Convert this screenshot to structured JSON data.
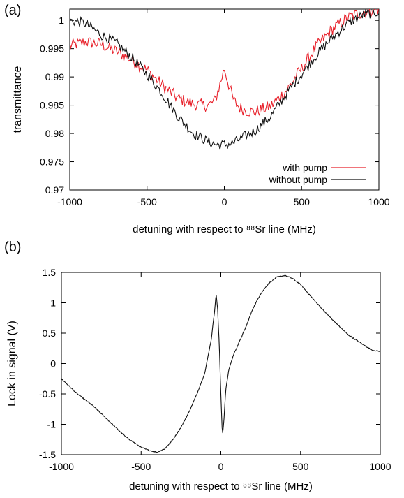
{
  "chart_data": [
    {
      "panel_label": "(a)",
      "type": "line",
      "xlabel": "detuning  with respect to ⁸⁸Sr line (MHz)",
      "ylabel": "transmittance",
      "xlim": [
        -1000,
        1000
      ],
      "ylim": [
        0.97,
        1.002
      ],
      "xticks": [
        -1000,
        -500,
        0,
        500,
        1000
      ],
      "yticks": [
        0.97,
        0.975,
        0.98,
        0.985,
        0.99,
        0.995,
        1
      ],
      "ytick_labels": [
        "0.97",
        "0.975",
        "0.98",
        "0.985",
        "0.99",
        "0.995",
        "1"
      ],
      "grid": false,
      "legend_position": "bottom-right",
      "series": [
        {
          "name": "with pump",
          "color": "#e8202a",
          "x": [
            -1000,
            -900,
            -800,
            -700,
            -600,
            -500,
            -400,
            -300,
            -200,
            -150,
            -100,
            -60,
            -30,
            0,
            30,
            60,
            100,
            150,
            200,
            300,
            400,
            500,
            600,
            700,
            800,
            900,
            1000
          ],
          "y": [
            0.9955,
            0.9962,
            0.9958,
            0.9945,
            0.993,
            0.9912,
            0.9885,
            0.9862,
            0.9852,
            0.985,
            0.985,
            0.9858,
            0.9885,
            0.9915,
            0.9885,
            0.9858,
            0.9845,
            0.984,
            0.9838,
            0.9848,
            0.9875,
            0.9915,
            0.9955,
            0.9985,
            1.0005,
            1.0015,
            1.002
          ]
        },
        {
          "name": "without pump",
          "color": "#111111",
          "x": [
            -1000,
            -900,
            -800,
            -700,
            -600,
            -500,
            -400,
            -300,
            -200,
            -100,
            -50,
            0,
            50,
            100,
            200,
            300,
            400,
            500,
            600,
            700,
            800,
            900,
            1000
          ],
          "y": [
            1.0,
            0.9995,
            0.9975,
            0.996,
            0.9935,
            0.9905,
            0.987,
            0.983,
            0.98,
            0.9785,
            0.978,
            0.978,
            0.9782,
            0.979,
            0.9805,
            0.983,
            0.987,
            0.9905,
            0.994,
            0.997,
            0.9995,
            1.001,
            1.0015
          ]
        }
      ]
    },
    {
      "panel_label": "(b)",
      "type": "line",
      "xlabel": "detuning  with respect to ⁸⁸Sr line (MHz)",
      "ylabel": "Lock in signal (V)",
      "xlim": [
        -1000,
        1000
      ],
      "ylim": [
        -1.5,
        1.5
      ],
      "xticks": [
        -1000,
        -500,
        0,
        500,
        1000
      ],
      "yticks": [
        -1.5,
        -1,
        -0.5,
        0,
        0.5,
        1,
        1.5
      ],
      "ytick_labels": [
        "-1.5",
        "-1",
        "-0.5",
        "0",
        "0.5",
        "1",
        "1.5"
      ],
      "grid": false,
      "series": [
        {
          "color": "#111111",
          "x": [
            -1000,
            -900,
            -800,
            -700,
            -600,
            -500,
            -450,
            -400,
            -350,
            -300,
            -250,
            -200,
            -150,
            -100,
            -60,
            -40,
            -30,
            -20,
            -10,
            0,
            10,
            20,
            30,
            50,
            80,
            120,
            160,
            200,
            250,
            300,
            350,
            400,
            450,
            500,
            600,
            700,
            800,
            900,
            950,
            1000
          ],
          "y": [
            -0.25,
            -0.5,
            -0.7,
            -0.95,
            -1.2,
            -1.38,
            -1.43,
            -1.46,
            -1.4,
            -1.25,
            -1.05,
            -0.8,
            -0.5,
            -0.15,
            0.4,
            0.85,
            1.15,
            0.9,
            0.3,
            -0.5,
            -1.2,
            -0.9,
            -0.45,
            -0.1,
            0.15,
            0.38,
            0.62,
            0.9,
            1.15,
            1.32,
            1.42,
            1.45,
            1.4,
            1.3,
            1.0,
            0.72,
            0.47,
            0.3,
            0.22,
            0.2
          ]
        }
      ]
    }
  ]
}
